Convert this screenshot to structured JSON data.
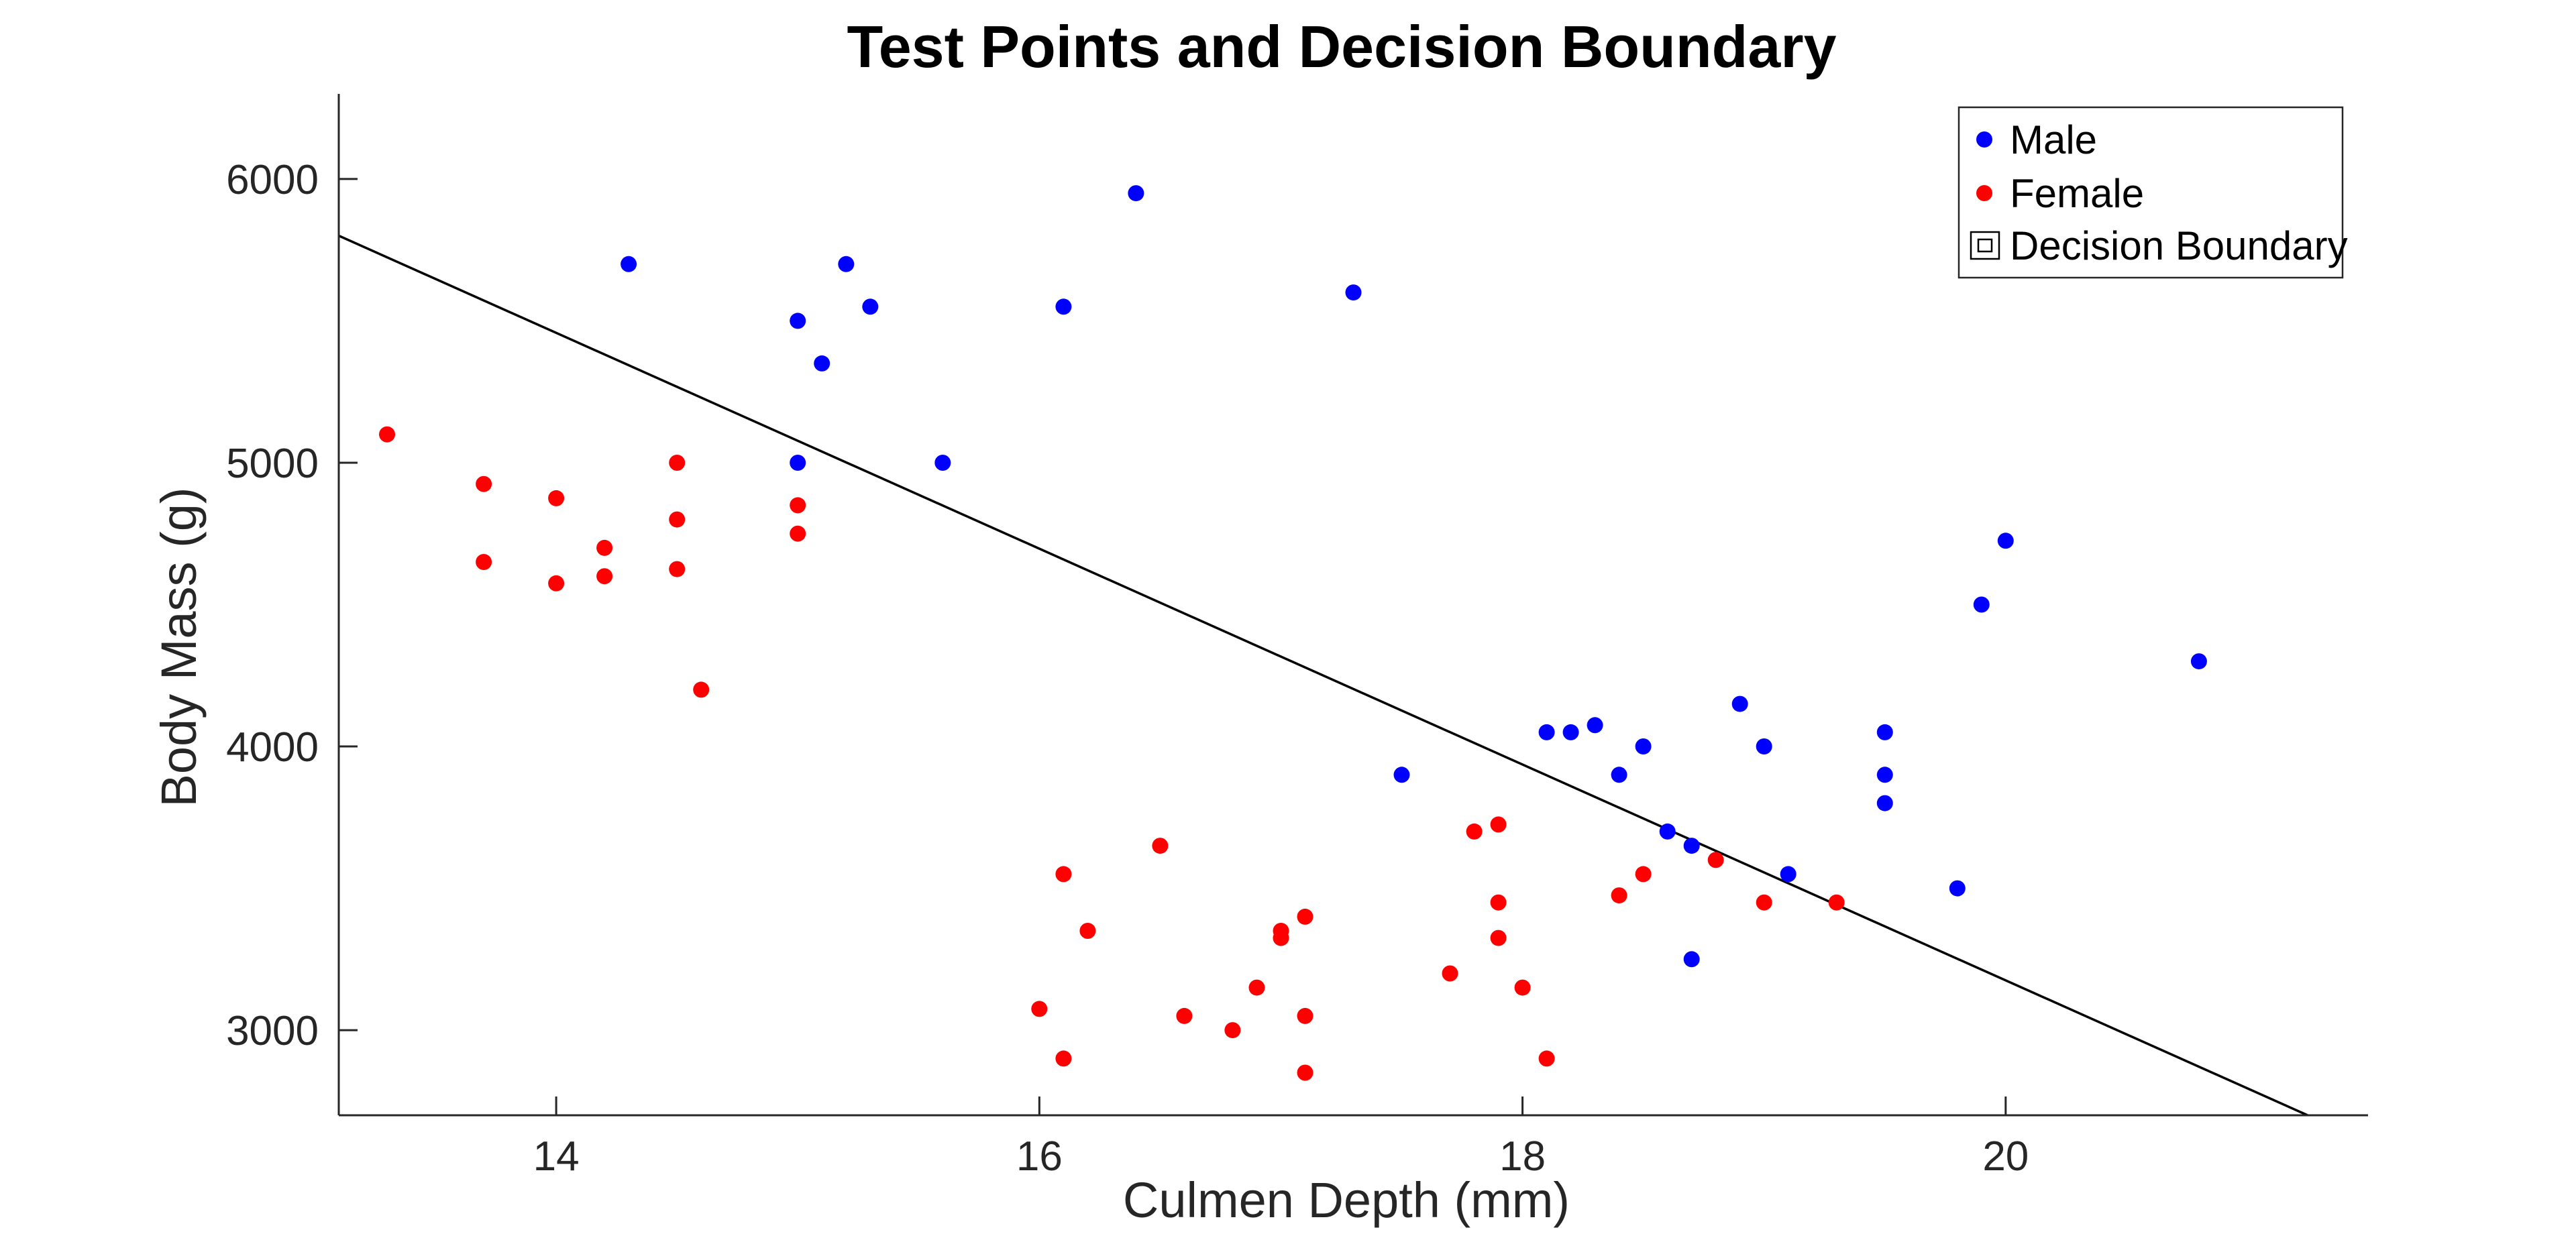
{
  "chart_data": {
    "type": "scatter",
    "title": "Test Points and Decision Boundary",
    "xlabel": "Culmen Depth (mm)",
    "ylabel": "Body Mass (g)",
    "xlim": [
      13.1,
      21.5
    ],
    "ylim": [
      2700,
      6300
    ],
    "xticks": [
      14,
      16,
      18,
      20
    ],
    "xtick_labels": [
      "14",
      "16",
      "18",
      "20"
    ],
    "yticks": [
      3000,
      4000,
      5000,
      6000
    ],
    "ytick_labels": [
      "3000",
      "4000",
      "5000",
      "6000"
    ],
    "grid": false,
    "legend_position": "top-right",
    "series": [
      {
        "name": "Male",
        "color": "#0000ff",
        "marker": "circle",
        "points": [
          [
            14.3,
            5700
          ],
          [
            15.0,
            5500
          ],
          [
            15.0,
            5000
          ],
          [
            15.1,
            5350
          ],
          [
            15.2,
            5700
          ],
          [
            15.3,
            5550
          ],
          [
            15.6,
            5000
          ],
          [
            16.1,
            5550
          ],
          [
            16.4,
            5950
          ],
          [
            17.3,
            5600
          ],
          [
            17.5,
            3900
          ],
          [
            18.1,
            4050
          ],
          [
            18.2,
            4050
          ],
          [
            18.3,
            4075
          ],
          [
            18.4,
            3900
          ],
          [
            18.5,
            4000
          ],
          [
            18.6,
            3700
          ],
          [
            18.7,
            3650
          ],
          [
            18.7,
            3250
          ],
          [
            18.9,
            4150
          ],
          [
            19.0,
            4000
          ],
          [
            19.1,
            3550
          ],
          [
            19.5,
            4050
          ],
          [
            19.5,
            3900
          ],
          [
            19.5,
            3800
          ],
          [
            19.8,
            3500
          ],
          [
            19.9,
            4500
          ],
          [
            20.0,
            4725
          ],
          [
            20.8,
            4300
          ]
        ]
      },
      {
        "name": "Female",
        "color": "#ff0000",
        "marker": "circle",
        "points": [
          [
            13.3,
            5100
          ],
          [
            13.7,
            4925
          ],
          [
            13.7,
            4650
          ],
          [
            14.0,
            4875
          ],
          [
            14.0,
            4575
          ],
          [
            14.2,
            4700
          ],
          [
            14.2,
            4600
          ],
          [
            14.5,
            5000
          ],
          [
            14.5,
            4800
          ],
          [
            14.5,
            4625
          ],
          [
            14.6,
            4200
          ],
          [
            15.0,
            4850
          ],
          [
            15.0,
            4750
          ],
          [
            16.0,
            3075
          ],
          [
            16.1,
            3550
          ],
          [
            16.1,
            2900
          ],
          [
            16.2,
            3350
          ],
          [
            16.5,
            3650
          ],
          [
            16.6,
            3050
          ],
          [
            16.8,
            3000
          ],
          [
            16.9,
            3150
          ],
          [
            17.0,
            3350
          ],
          [
            17.0,
            3325
          ],
          [
            17.1,
            3400
          ],
          [
            17.1,
            3050
          ],
          [
            17.1,
            2850
          ],
          [
            17.7,
            3200
          ],
          [
            17.8,
            3700
          ],
          [
            17.9,
            3725
          ],
          [
            17.9,
            3450
          ],
          [
            17.9,
            3325
          ],
          [
            18.0,
            3150
          ],
          [
            18.1,
            2900
          ],
          [
            18.4,
            3475
          ],
          [
            18.5,
            3550
          ],
          [
            18.8,
            3600
          ],
          [
            19.0,
            3450
          ],
          [
            19.3,
            3450
          ]
        ]
      },
      {
        "name": "Decision Boundary",
        "color": "#000000",
        "marker": "line",
        "points": [
          [
            13.1,
            5800
          ],
          [
            21.25,
            2700
          ]
        ]
      }
    ]
  }
}
